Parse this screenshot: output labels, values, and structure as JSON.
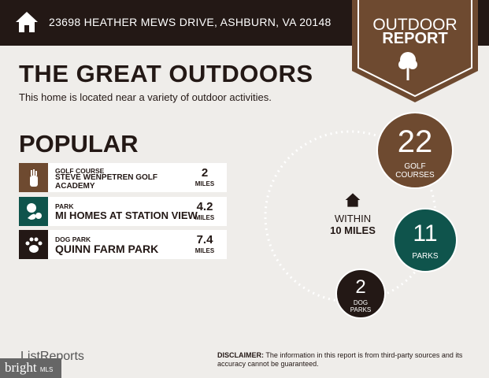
{
  "header": {
    "address": "23698 HEATHER MEWS DRIVE, ASHBURN, VA 20148",
    "home_icon": "house-icon"
  },
  "badge": {
    "line1": "OUTDOOR",
    "line2": "REPORT",
    "icon": "tree-icon"
  },
  "title": "THE GREAT OUTDOORS",
  "subtitle": "This home is located near a variety of outdoor activities.",
  "popular": {
    "heading": "POPULAR",
    "items": [
      {
        "category": "GOLF COURSE",
        "name": "STEVE WENPETREN GOLF ACADEMY",
        "distance": "2",
        "unit": "MILES",
        "icon": "golf-bag-icon",
        "color": "#6e4a30"
      },
      {
        "category": "PARK",
        "name": "MI HOMES AT STATION VIEW",
        "distance": "4.2",
        "unit": "MILES",
        "icon": "park-tree-icon",
        "color": "#0f544c"
      },
      {
        "category": "DOG PARK",
        "name": "QUINN FARM PARK",
        "distance": "7.4",
        "unit": "MILES",
        "icon": "paw-icon",
        "color": "#231815"
      }
    ]
  },
  "summary": {
    "within_line1": "WITHIN",
    "within_line2": "10 MILES",
    "golf": {
      "count": "22",
      "label1": "GOLF",
      "label2": "COURSES"
    },
    "parks": {
      "count": "11",
      "label1": "PARKS"
    },
    "dog": {
      "count": "2",
      "label1": "DOG",
      "label2": "PARKS"
    }
  },
  "footer": {
    "logo": "ListReports",
    "disclaimer_label": "DISCLAIMER:",
    "disclaimer_text": " The information in this report is from third-party sources and its accuracy cannot be guaranteed.",
    "watermark": "bright MLS"
  },
  "colors": {
    "brown": "#6e4a30",
    "teal": "#0f544c",
    "dark": "#231815",
    "bg": "#efedea"
  }
}
